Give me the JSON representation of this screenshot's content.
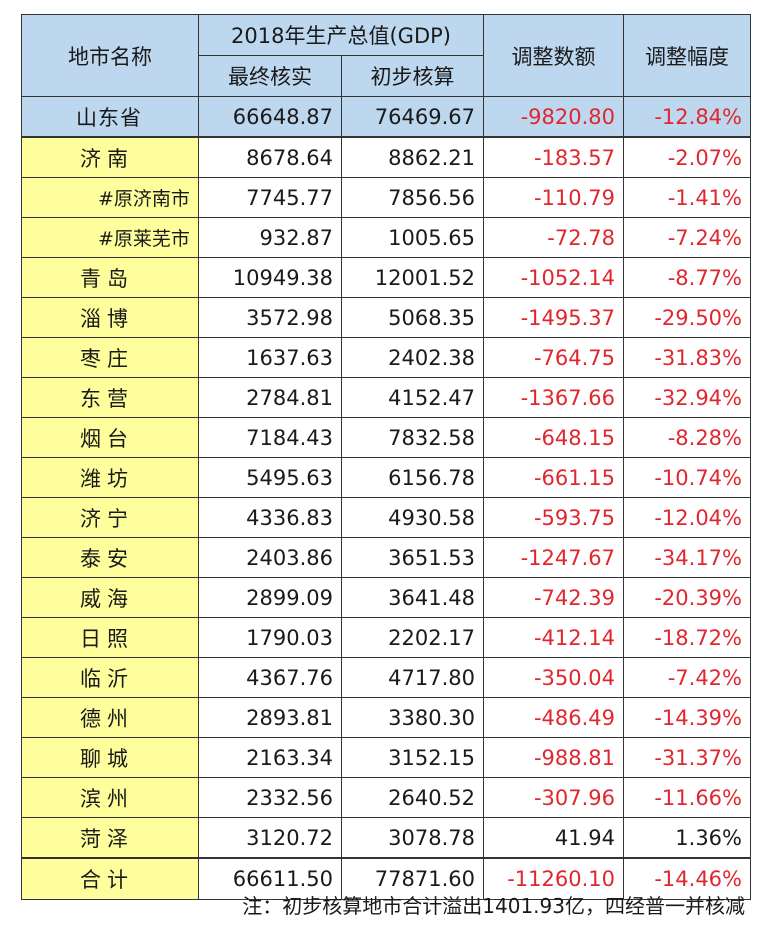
{
  "header": {
    "city": "地市名称",
    "gdp_group": "2018年生产总值(GDP)",
    "final": "最终核实",
    "prelim": "初步核算",
    "adjust_amount": "调整数额",
    "adjust_rate": "调整幅度"
  },
  "province": {
    "name": "山东省",
    "final": "66648.87",
    "prelim": "76469.67",
    "amount": "-9820.80",
    "rate": "-12.84%"
  },
  "rows": [
    {
      "name": "济南",
      "final": "8678.64",
      "prelim": "8862.21",
      "amount": "-183.57",
      "rate": "-2.07%",
      "sub": false
    },
    {
      "name": "#原济南市",
      "final": "7745.77",
      "prelim": "7856.56",
      "amount": "-110.79",
      "rate": "-1.41%",
      "sub": true
    },
    {
      "name": "#原莱芜市",
      "final": "932.87",
      "prelim": "1005.65",
      "amount": "-72.78",
      "rate": "-7.24%",
      "sub": true
    },
    {
      "name": "青岛",
      "final": "10949.38",
      "prelim": "12001.52",
      "amount": "-1052.14",
      "rate": "-8.77%",
      "sub": false
    },
    {
      "name": "淄博",
      "final": "3572.98",
      "prelim": "5068.35",
      "amount": "-1495.37",
      "rate": "-29.50%",
      "sub": false
    },
    {
      "name": "枣庄",
      "final": "1637.63",
      "prelim": "2402.38",
      "amount": "-764.75",
      "rate": "-31.83%",
      "sub": false
    },
    {
      "name": "东营",
      "final": "2784.81",
      "prelim": "4152.47",
      "amount": "-1367.66",
      "rate": "-32.94%",
      "sub": false
    },
    {
      "name": "烟台",
      "final": "7184.43",
      "prelim": "7832.58",
      "amount": "-648.15",
      "rate": "-8.28%",
      "sub": false
    },
    {
      "name": "潍坊",
      "final": "5495.63",
      "prelim": "6156.78",
      "amount": "-661.15",
      "rate": "-10.74%",
      "sub": false
    },
    {
      "name": "济宁",
      "final": "4336.83",
      "prelim": "4930.58",
      "amount": "-593.75",
      "rate": "-12.04%",
      "sub": false
    },
    {
      "name": "泰安",
      "final": "2403.86",
      "prelim": "3651.53",
      "amount": "-1247.67",
      "rate": "-34.17%",
      "sub": false
    },
    {
      "name": "威海",
      "final": "2899.09",
      "prelim": "3641.48",
      "amount": "-742.39",
      "rate": "-20.39%",
      "sub": false
    },
    {
      "name": "日照",
      "final": "1790.03",
      "prelim": "2202.17",
      "amount": "-412.14",
      "rate": "-18.72%",
      "sub": false
    },
    {
      "name": "临沂",
      "final": "4367.76",
      "prelim": "4717.80",
      "amount": "-350.04",
      "rate": "-7.42%",
      "sub": false
    },
    {
      "name": "德州",
      "final": "2893.81",
      "prelim": "3380.30",
      "amount": "-486.49",
      "rate": "-14.39%",
      "sub": false
    },
    {
      "name": "聊城",
      "final": "2163.34",
      "prelim": "3152.15",
      "amount": "-988.81",
      "rate": "-31.37%",
      "sub": false
    },
    {
      "name": "滨州",
      "final": "2332.56",
      "prelim": "2640.52",
      "amount": "-307.96",
      "rate": "-11.66%",
      "sub": false
    },
    {
      "name": "菏泽",
      "final": "3120.72",
      "prelim": "3078.78",
      "amount": "41.94",
      "rate": "1.36%",
      "sub": false
    }
  ],
  "total": {
    "name": "合计",
    "final": "66611.50",
    "prelim": "77871.60",
    "amount": "-11260.10",
    "rate": "-14.46%"
  },
  "note": "注：初步核算地市合计溢出1401.93亿，四经普一并核减",
  "colors": {
    "header_bg": "#bdd7ee",
    "name_bg": "#fefe9c",
    "negative": "#e0262f"
  }
}
